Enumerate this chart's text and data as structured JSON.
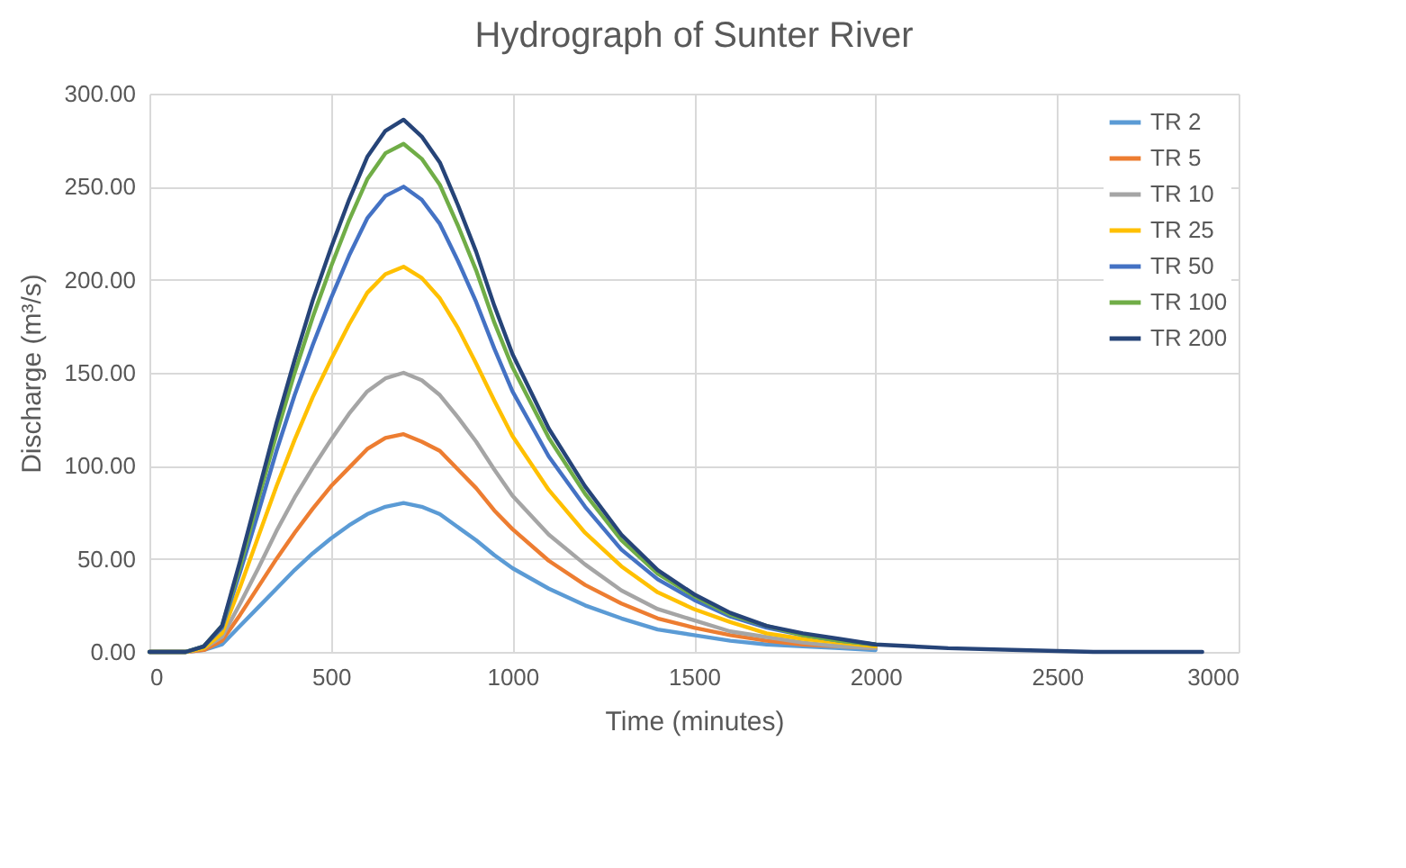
{
  "chart_data": {
    "type": "line",
    "title": "Hydrograph of Sunter River",
    "xlabel": "Time (minutes)",
    "ylabel": "Discharge (m³/s)",
    "x": [
      0,
      100,
      150,
      200,
      250,
      300,
      350,
      400,
      450,
      500,
      550,
      600,
      650,
      700,
      750,
      800,
      850,
      900,
      950,
      1000,
      1100,
      1200,
      1300,
      1400,
      1500,
      1600,
      1700,
      1800,
      1900,
      2000,
      2200,
      2400,
      2600,
      2800,
      2900
    ],
    "series": [
      {
        "name": "TR 2",
        "color": "#5b9bd5",
        "values": [
          0,
          0,
          1,
          4,
          14,
          24,
          34,
          44,
          53,
          61,
          68,
          74,
          78,
          80,
          78,
          74,
          67,
          60,
          52,
          45,
          34,
          25,
          18,
          12,
          9,
          6,
          4,
          3,
          2,
          1,
          null,
          null,
          null,
          null,
          null
        ]
      },
      {
        "name": "TR 5",
        "color": "#ed7d31",
        "values": [
          0,
          0,
          1,
          6,
          20,
          35,
          50,
          64,
          77,
          89,
          99,
          109,
          115,
          117,
          113,
          108,
          98,
          88,
          76,
          66,
          49,
          36,
          26,
          18,
          13,
          9,
          6,
          4,
          3,
          2,
          null,
          null,
          null,
          null,
          null
        ]
      },
      {
        "name": "TR 10",
        "color": "#a5a5a5",
        "values": [
          0,
          0,
          2,
          8,
          26,
          45,
          65,
          83,
          99,
          114,
          128,
          140,
          147,
          150,
          146,
          138,
          126,
          113,
          98,
          84,
          63,
          47,
          33,
          23,
          17,
          11,
          8,
          5,
          3,
          2,
          null,
          null,
          null,
          null,
          null
        ]
      },
      {
        "name": "TR 25",
        "color": "#ffc000",
        "values": [
          0,
          0,
          2,
          10,
          35,
          62,
          89,
          114,
          137,
          157,
          176,
          193,
          203,
          207,
          201,
          190,
          174,
          155,
          135,
          116,
          87,
          64,
          46,
          32,
          23,
          16,
          10,
          7,
          5,
          3,
          null,
          null,
          null,
          null,
          null
        ]
      },
      {
        "name": "TR 50",
        "color": "#4472c4",
        "values": [
          0,
          0,
          3,
          13,
          43,
          75,
          108,
          138,
          165,
          190,
          213,
          233,
          245,
          250,
          243,
          230,
          210,
          188,
          163,
          140,
          105,
          78,
          55,
          39,
          28,
          19,
          13,
          9,
          6,
          4,
          null,
          null,
          null,
          null,
          null
        ]
      },
      {
        "name": "TR 100",
        "color": "#70ad47",
        "values": [
          0,
          0,
          3,
          14,
          46,
          82,
          117,
          150,
          180,
          207,
          232,
          254,
          268,
          273,
          265,
          251,
          229,
          205,
          177,
          153,
          115,
          85,
          60,
          42,
          30,
          20,
          14,
          9,
          6,
          4,
          null,
          null,
          null,
          null,
          null
        ]
      },
      {
        "name": "TR 200",
        "color": "#264478",
        "values": [
          0,
          0,
          3,
          14,
          49,
          86,
          123,
          157,
          189,
          217,
          243,
          266,
          280,
          286,
          277,
          263,
          240,
          215,
          186,
          160,
          120,
          89,
          63,
          44,
          31,
          21,
          14,
          10,
          7,
          4,
          2,
          1,
          0,
          0,
          0
        ]
      }
    ],
    "xlim": [
      0,
      3000
    ],
    "xticks": [
      0,
      500,
      1000,
      1500,
      2000,
      2500,
      3000
    ],
    "ylim": [
      0,
      300
    ],
    "yticks": [
      {
        "value": 0,
        "label": "0.00"
      },
      {
        "value": 50,
        "label": "50.00"
      },
      {
        "value": 100,
        "label": "100.00"
      },
      {
        "value": 150,
        "label": "150.00"
      },
      {
        "value": 200,
        "label": "200.00"
      },
      {
        "value": 250,
        "label": "250.00"
      },
      {
        "value": 300,
        "label": "300.00"
      }
    ],
    "grid": true,
    "legend": "top right",
    "marker": "none",
    "line_style": "solid"
  }
}
